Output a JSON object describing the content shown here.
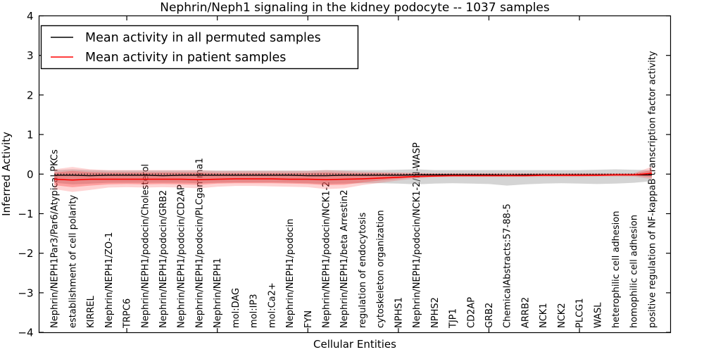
{
  "chart_data": {
    "type": "line",
    "title": "Nephrin/Neph1 signaling in the kidney podocyte -- 1037 samples",
    "xlabel": "Cellular Entities",
    "ylabel": "Inferred Activity",
    "ylim": [
      -4,
      4
    ],
    "grid": false,
    "legend_position": "upper left",
    "legend": [
      {
        "label": "Mean activity in all permuted samples",
        "color": "#000000"
      },
      {
        "label": "Mean activity in patient samples",
        "color": "#ff0000"
      }
    ],
    "yticks": [
      {
        "value": 4,
        "label": "4"
      },
      {
        "value": 3,
        "label": "3"
      },
      {
        "value": 2,
        "label": "2"
      },
      {
        "value": 1,
        "label": "1"
      },
      {
        "value": 0,
        "label": "0"
      },
      {
        "value": -1,
        "label": "−1"
      },
      {
        "value": -2,
        "label": "−2"
      },
      {
        "value": -3,
        "label": "−3"
      },
      {
        "value": -4,
        "label": "−4"
      }
    ],
    "xtick_indices": [
      4,
      9,
      14,
      19,
      24,
      29
    ],
    "categories": [
      "Nephrin/NEPH1Par3/Par6/Atypical PKCs",
      "establishment of cell polarity",
      "KIRREL",
      "Nephrin/NEPH1/ZO-1",
      "TRPC6",
      "Nephrin/NEPH1/podocin/Cholesterol",
      "Nephrin/NEPH1/podocin/GRB2",
      "Nephrin/NEPH1/podocin/CD2AP",
      "Nephrin/NEPH1/podocin/PLCgamma1",
      "Nephrin/NEPH1",
      "mol:DAG",
      "mol:IP3",
      "mol:Ca2+",
      "Nephrin/NEPH1/podocin",
      "FYN",
      "Nephrin/NEPH1/podocin/NCK1-2",
      "Nephrin/NEPH1/beta Arrestin2",
      "regulation of endocytosis",
      "cytoskeleton organization",
      "NPHS1",
      "Nephrin/NEPH1/podocin/NCK1-2/N-WASP",
      "NPHS2",
      "TJP1",
      "CD2AP",
      "GRB2",
      "ChemicalAbstracts:57-88-5",
      "ARRB2",
      "NCK1",
      "NCK2",
      "PLCG1",
      "WASL",
      "heterophilic cell adhesion",
      "homophilic cell adhesion",
      "positive regulation of NF-kappaB transcription factor activity"
    ],
    "series": [
      {
        "name": "zero-reference-line",
        "color": "#000000",
        "style": "dotted",
        "dash": "1.6 2.6",
        "width": 1.2,
        "values": [
          0,
          0,
          0,
          0,
          0,
          0,
          0,
          0,
          0,
          0,
          0,
          0,
          0,
          0,
          0,
          0,
          0,
          0,
          0,
          0,
          0,
          0,
          0,
          0,
          0,
          0,
          0,
          0,
          0,
          0,
          0,
          0,
          0,
          0
        ]
      },
      {
        "name": "permuted-mean-line",
        "color": "#000000",
        "style": "solid",
        "dash": "",
        "width": 1.4,
        "values": [
          -0.03,
          -0.03,
          -0.04,
          -0.03,
          -0.03,
          -0.03,
          -0.04,
          -0.03,
          -0.03,
          -0.03,
          -0.03,
          -0.03,
          -0.03,
          -0.03,
          -0.04,
          -0.04,
          -0.03,
          -0.03,
          -0.03,
          -0.03,
          -0.02,
          -0.02,
          -0.02,
          -0.02,
          -0.02,
          -0.03,
          -0.02,
          -0.02,
          -0.02,
          -0.02,
          -0.02,
          -0.02,
          -0.02,
          -0.02
        ]
      },
      {
        "name": "patient-mean-line",
        "color": "#ff0000",
        "style": "solid",
        "dash": "",
        "width": 1.6,
        "values": [
          -0.13,
          -0.15,
          -0.13,
          -0.13,
          -0.13,
          -0.13,
          -0.13,
          -0.13,
          -0.14,
          -0.13,
          -0.12,
          -0.12,
          -0.12,
          -0.13,
          -0.13,
          -0.14,
          -0.13,
          -0.12,
          -0.1,
          -0.08,
          -0.06,
          -0.05,
          -0.04,
          -0.04,
          -0.04,
          -0.04,
          -0.04,
          -0.03,
          -0.03,
          -0.03,
          -0.03,
          -0.02,
          -0.02,
          0.02
        ]
      }
    ],
    "bands": [
      {
        "name": "permuted-std-band",
        "fill": "rgba(160,160,160,0.45)",
        "upper": [
          0.1,
          0.12,
          0.1,
          0.09,
          0.09,
          0.09,
          0.09,
          0.09,
          0.09,
          0.09,
          0.09,
          0.09,
          0.09,
          0.09,
          0.09,
          0.1,
          0.1,
          0.1,
          0.1,
          0.11,
          0.12,
          0.1,
          0.1,
          0.1,
          0.1,
          0.1,
          0.1,
          0.1,
          0.1,
          0.1,
          0.11,
          0.12,
          0.11,
          0.1
        ],
        "lower": [
          -0.22,
          -0.26,
          -0.24,
          -0.22,
          -0.22,
          -0.22,
          -0.22,
          -0.22,
          -0.23,
          -0.22,
          -0.21,
          -0.21,
          -0.21,
          -0.22,
          -0.23,
          -0.25,
          -0.24,
          -0.23,
          -0.23,
          -0.24,
          -0.26,
          -0.24,
          -0.23,
          -0.24,
          -0.25,
          -0.29,
          -0.26,
          -0.24,
          -0.23,
          -0.24,
          -0.25,
          -0.24,
          -0.22,
          -0.18
        ]
      },
      {
        "name": "patient-std-band-outer",
        "fill": "rgba(255,60,60,0.22)",
        "upper": [
          0.12,
          0.18,
          0.12,
          0.1,
          0.1,
          0.1,
          0.1,
          0.1,
          0.1,
          0.08,
          0.08,
          0.08,
          0.08,
          0.08,
          0.08,
          0.1,
          0.08,
          0.06,
          0.05,
          0.04,
          0.03,
          0.02,
          0.02,
          0.02,
          0.02,
          0.02,
          0.02,
          0.02,
          0.02,
          0.02,
          0.02,
          0.02,
          0.02,
          0.19
        ],
        "lower": [
          -0.38,
          -0.45,
          -0.4,
          -0.34,
          -0.33,
          -0.34,
          -0.33,
          -0.34,
          -0.36,
          -0.32,
          -0.3,
          -0.3,
          -0.31,
          -0.32,
          -0.33,
          -0.38,
          -0.36,
          -0.28,
          -0.22,
          -0.16,
          -0.11,
          -0.08,
          -0.07,
          -0.07,
          -0.07,
          -0.07,
          -0.07,
          -0.07,
          -0.07,
          -0.07,
          -0.06,
          -0.06,
          -0.06,
          -0.13
        ]
      },
      {
        "name": "patient-std-band-inner",
        "fill": "rgba(255,40,40,0.30)",
        "upper": [
          0.04,
          0.08,
          0.05,
          0.04,
          0.04,
          0.04,
          0.04,
          0.04,
          0.04,
          0.03,
          0.03,
          0.03,
          0.03,
          0.03,
          0.03,
          0.04,
          0.03,
          0.02,
          0.02,
          0.01,
          0.01,
          0.01,
          0.01,
          0.01,
          0.01,
          0.01,
          0.01,
          0.01,
          0.01,
          0.01,
          0.01,
          0.01,
          0.01,
          0.1
        ],
        "lower": [
          -0.28,
          -0.33,
          -0.29,
          -0.26,
          -0.25,
          -0.26,
          -0.25,
          -0.26,
          -0.27,
          -0.24,
          -0.23,
          -0.23,
          -0.23,
          -0.24,
          -0.25,
          -0.28,
          -0.27,
          -0.21,
          -0.16,
          -0.12,
          -0.08,
          -0.06,
          -0.05,
          -0.05,
          -0.05,
          -0.05,
          -0.05,
          -0.05,
          -0.05,
          -0.05,
          -0.05,
          -0.04,
          -0.04,
          -0.08
        ]
      }
    ]
  }
}
